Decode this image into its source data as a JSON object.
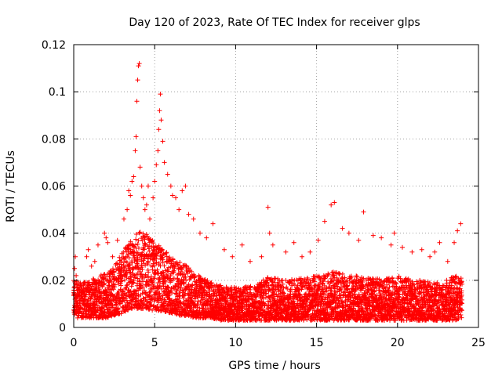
{
  "chart_data": {
    "type": "scatter",
    "title": "Day 120 of 2023, Rate Of TEC Index for receiver glps",
    "xlabel": "GPS time / hours",
    "ylabel": "ROTI / TECUs",
    "xlim": [
      0,
      25
    ],
    "ylim": [
      0,
      0.12
    ],
    "x_ticks": [
      0,
      5,
      10,
      15,
      20,
      25
    ],
    "x_tick_labels": [
      "0",
      "5",
      "10",
      "15",
      "20",
      "25"
    ],
    "y_ticks": [
      0,
      0.02,
      0.04,
      0.06,
      0.08,
      0.1,
      0.12
    ],
    "y_tick_labels": [
      "0",
      "0.02",
      "0.04",
      "0.06",
      "0.08",
      "0.1",
      "0.12"
    ],
    "grid": true,
    "marker": "+",
    "color": "#ff0000",
    "series": [
      {
        "name": "ROTI",
        "x": [
          0.05,
          0.1,
          0.15,
          0.2,
          0.8,
          0.9,
          1.1,
          1.3,
          1.5,
          1.9,
          2.0,
          2.1,
          2.4,
          2.7,
          3.1,
          3.3,
          3.4,
          3.5,
          3.6,
          3.7,
          3.8,
          3.85,
          3.9,
          3.95,
          4.0,
          4.05,
          4.1,
          4.2,
          4.3,
          4.4,
          4.5,
          4.6,
          4.7,
          4.9,
          5.0,
          5.1,
          5.2,
          5.25,
          5.3,
          5.35,
          5.4,
          5.5,
          5.6,
          5.8,
          6.0,
          6.1,
          6.3,
          6.5,
          6.7,
          6.9,
          7.1,
          7.4,
          7.8,
          8.2,
          8.6,
          9.3,
          9.8,
          10.4,
          10.9,
          11.6,
          12.0,
          12.1,
          12.3,
          13.1,
          13.6,
          14.1,
          14.6,
          15.1,
          15.5,
          15.9,
          16.1,
          16.6,
          17.0,
          17.6,
          17.9,
          18.5,
          19.0,
          19.6,
          19.8,
          20.3,
          20.9,
          21.5,
          22.0,
          22.3,
          22.6,
          23.1,
          23.5,
          23.7,
          23.9
        ],
        "y": [
          0.025,
          0.03,
          0.022,
          0.018,
          0.03,
          0.033,
          0.026,
          0.028,
          0.035,
          0.04,
          0.038,
          0.036,
          0.03,
          0.037,
          0.046,
          0.05,
          0.058,
          0.056,
          0.062,
          0.064,
          0.075,
          0.081,
          0.096,
          0.105,
          0.111,
          0.112,
          0.068,
          0.06,
          0.055,
          0.05,
          0.052,
          0.06,
          0.046,
          0.055,
          0.062,
          0.069,
          0.075,
          0.084,
          0.092,
          0.099,
          0.088,
          0.079,
          0.07,
          0.065,
          0.06,
          0.056,
          0.055,
          0.05,
          0.058,
          0.06,
          0.048,
          0.046,
          0.04,
          0.038,
          0.044,
          0.033,
          0.03,
          0.035,
          0.028,
          0.03,
          0.051,
          0.04,
          0.035,
          0.032,
          0.036,
          0.03,
          0.032,
          0.037,
          0.045,
          0.052,
          0.053,
          0.042,
          0.04,
          0.037,
          0.049,
          0.039,
          0.038,
          0.035,
          0.04,
          0.034,
          0.032,
          0.033,
          0.03,
          0.032,
          0.036,
          0.028,
          0.036,
          0.041,
          0.044
        ]
      }
    ],
    "dense_band": {
      "x": [
        0,
        0.5,
        1,
        1.5,
        2,
        2.5,
        3,
        3.5,
        4,
        4.5,
        5,
        5.5,
        6,
        6.5,
        7,
        7.5,
        8,
        8.5,
        9,
        9.5,
        10,
        10.5,
        11,
        11.5,
        12,
        12.5,
        13,
        13.5,
        14,
        14.5,
        15,
        15.5,
        16,
        16.5,
        17,
        17.5,
        18,
        18.5,
        19,
        19.5,
        20,
        20.5,
        21,
        21.5,
        22,
        22.5,
        23,
        23.5,
        24
      ],
      "low": [
        0.004,
        0.004,
        0.004,
        0.004,
        0.004,
        0.005,
        0.006,
        0.008,
        0.008,
        0.008,
        0.007,
        0.007,
        0.006,
        0.005,
        0.005,
        0.004,
        0.004,
        0.004,
        0.003,
        0.003,
        0.003,
        0.003,
        0.003,
        0.003,
        0.003,
        0.003,
        0.003,
        0.003,
        0.003,
        0.003,
        0.003,
        0.003,
        0.003,
        0.003,
        0.003,
        0.003,
        0.003,
        0.003,
        0.003,
        0.003,
        0.003,
        0.003,
        0.003,
        0.003,
        0.003,
        0.003,
        0.003,
        0.003,
        0.004
      ],
      "high": [
        0.02,
        0.019,
        0.02,
        0.022,
        0.024,
        0.026,
        0.032,
        0.037,
        0.041,
        0.04,
        0.036,
        0.034,
        0.03,
        0.028,
        0.026,
        0.023,
        0.021,
        0.019,
        0.018,
        0.017,
        0.017,
        0.017,
        0.018,
        0.019,
        0.022,
        0.021,
        0.02,
        0.021,
        0.021,
        0.021,
        0.022,
        0.022,
        0.024,
        0.023,
        0.022,
        0.022,
        0.021,
        0.021,
        0.021,
        0.021,
        0.022,
        0.021,
        0.02,
        0.02,
        0.02,
        0.019,
        0.02,
        0.022,
        0.021
      ]
    }
  }
}
